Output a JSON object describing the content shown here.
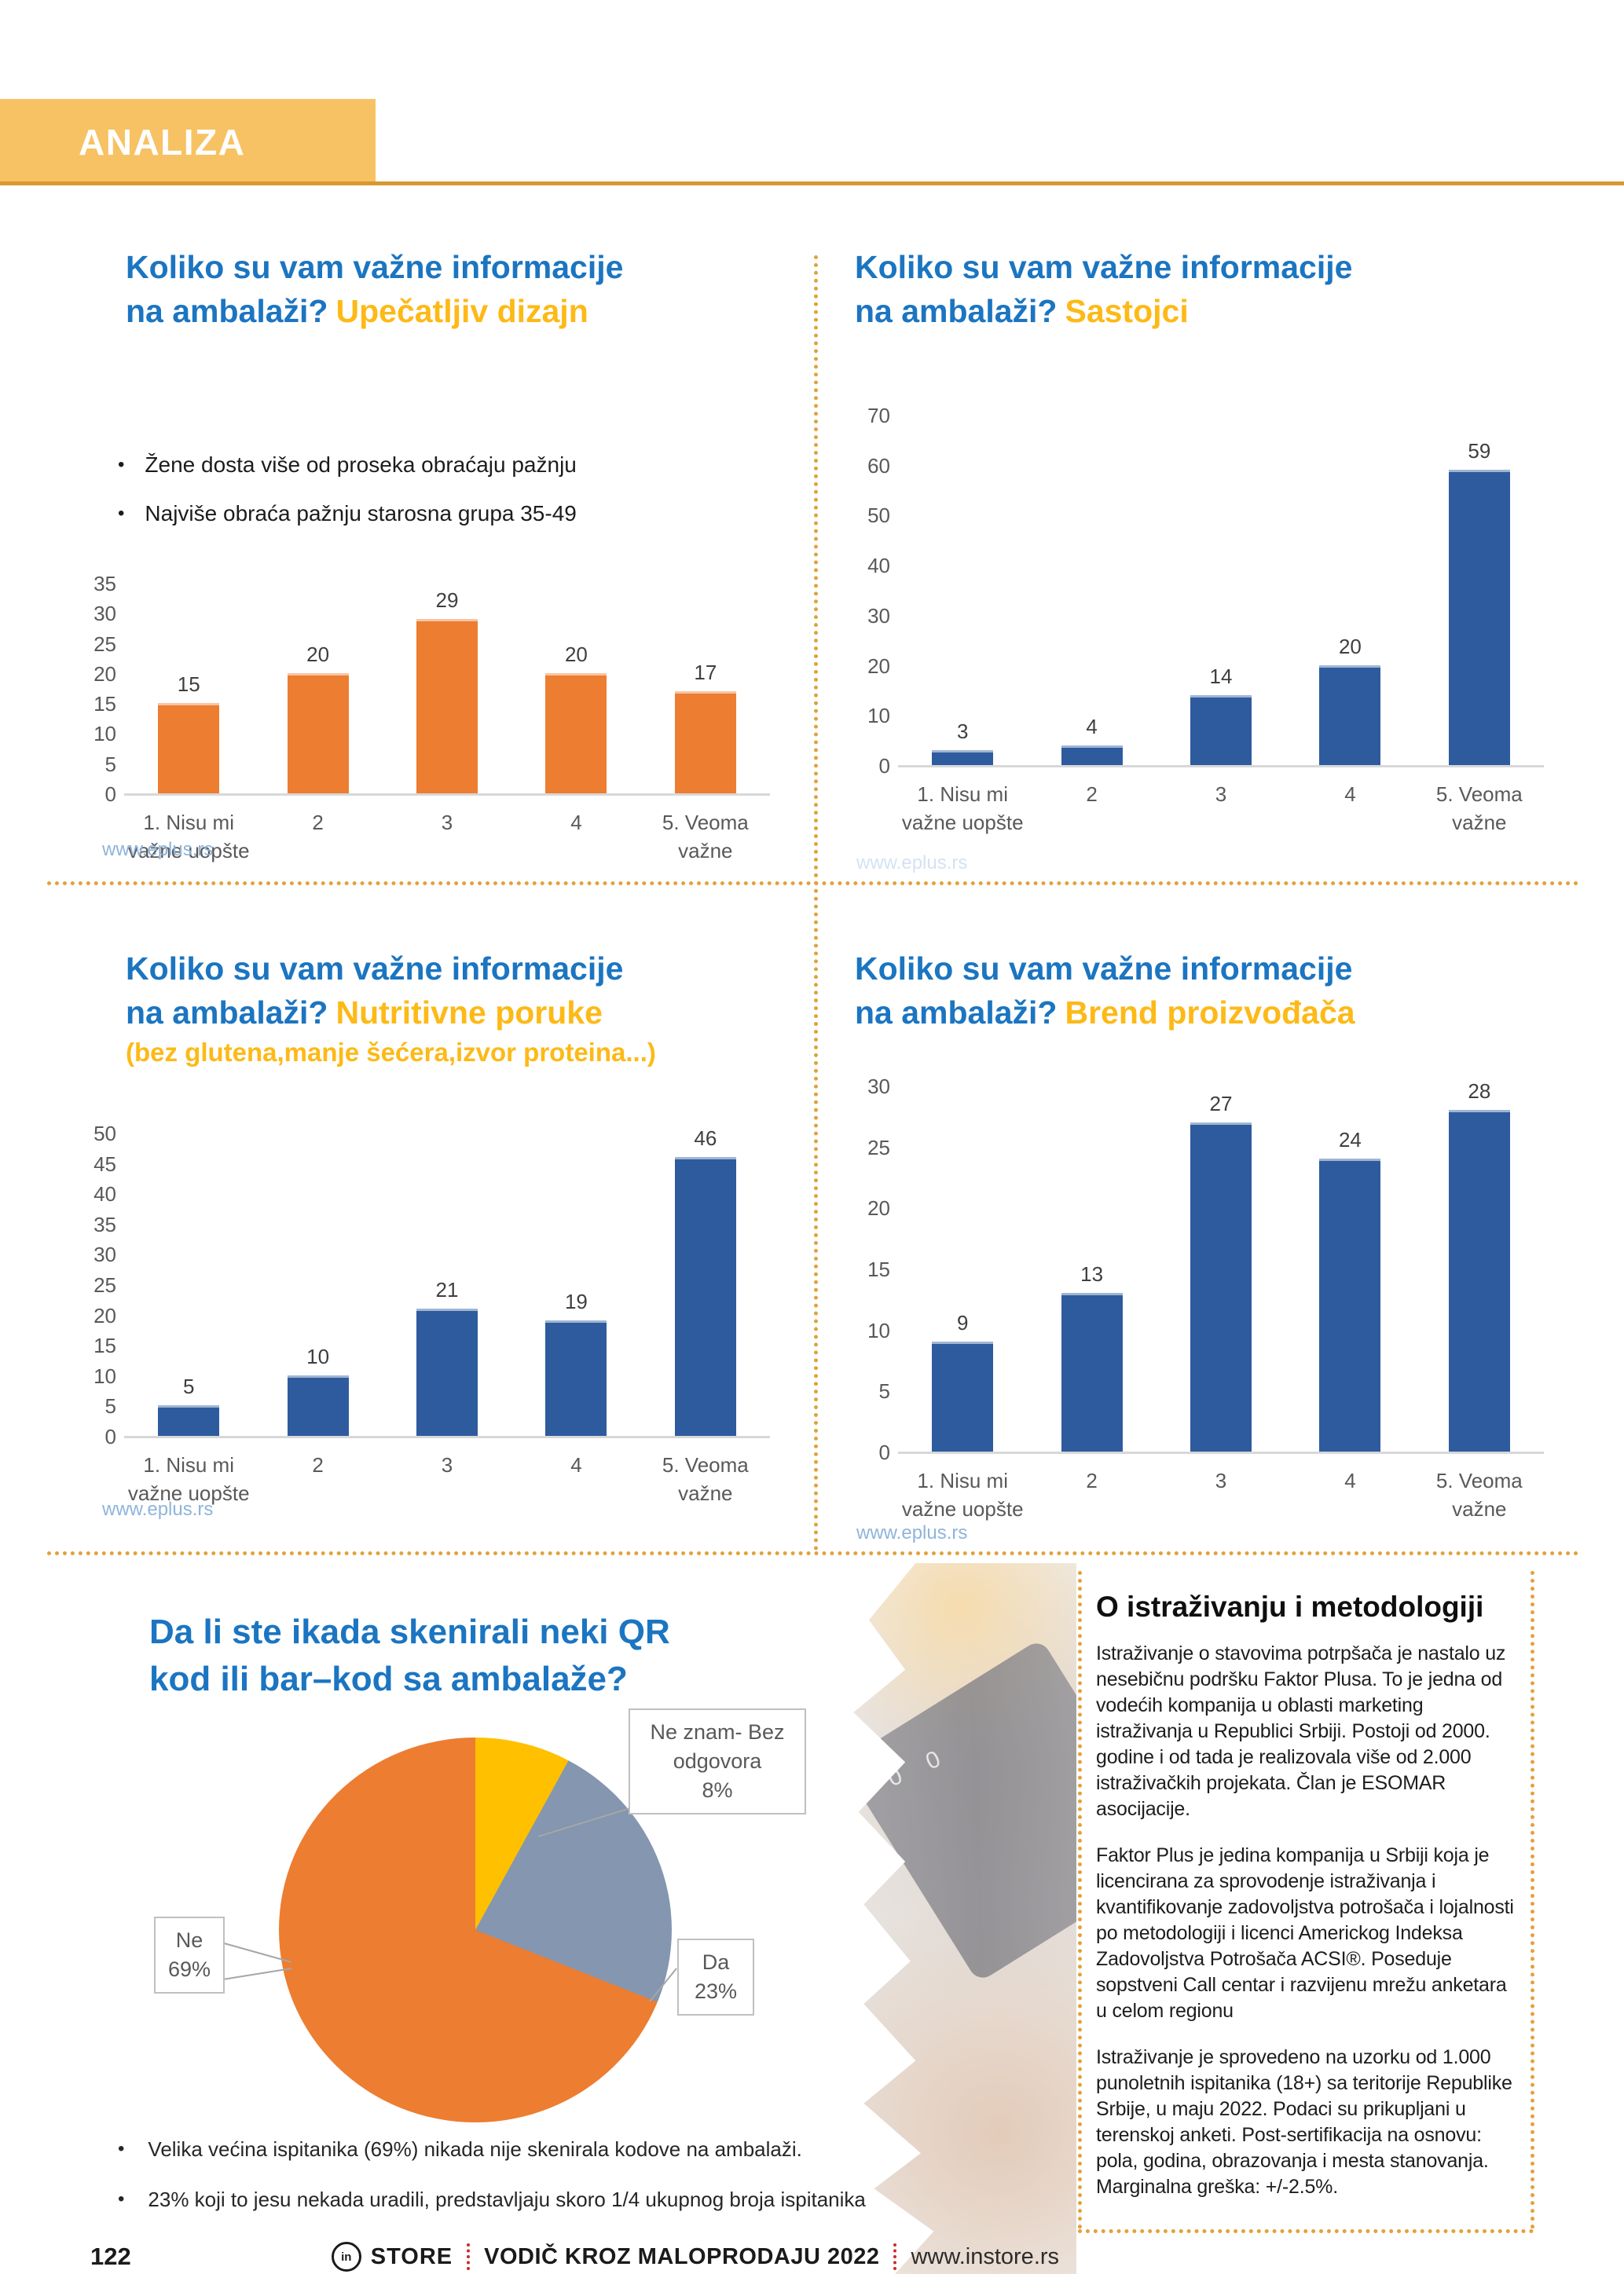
{
  "header": {
    "title": "ANALIZA"
  },
  "chart_data": [
    {
      "type": "bar",
      "title_line1": "Koliko su vam važne informacije",
      "title_line2": "na ambalaži?",
      "accent": "Upečatljiv dizajn",
      "notes": [
        "Žene dosta više od proseka obraćaju pažnju",
        "Najviše obraća pažnju starosna grupa 35-49"
      ],
      "categories": [
        "1. Nisu mi\nvažne uopšte",
        "2",
        "3",
        "4",
        "5. Veoma\nvažne"
      ],
      "values": [
        15,
        20,
        29,
        20,
        17
      ],
      "bar_color": "#ed7d31",
      "ylim": [
        0,
        35
      ],
      "ystep": 5,
      "grid": false,
      "legend": "none",
      "source": "www.eplus.rs"
    },
    {
      "type": "bar",
      "title_line1": "Koliko su vam važne informacije",
      "title_line2": "na ambalaži?",
      "accent": "Sastojci",
      "categories": [
        "1. Nisu mi\nvažne uopšte",
        "2",
        "3",
        "4",
        "5. Veoma\nvažne"
      ],
      "values": [
        3,
        4,
        14,
        20,
        59
      ],
      "bar_color": "#2e5b9e",
      "ylim": [
        0,
        70
      ],
      "ystep": 10,
      "grid": false,
      "legend": "none",
      "source": "www.eplus.rs"
    },
    {
      "type": "bar",
      "title_line1": "Koliko su vam važne informacije",
      "title_line2": "na ambalaži?",
      "accent": "Nutritivne poruke",
      "accent2": "(bez glutena,manje šećera,izvor proteina...)",
      "categories": [
        "1. Nisu mi\nvažne uopšte",
        "2",
        "3",
        "4",
        "5. Veoma\nvažne"
      ],
      "values": [
        5,
        10,
        21,
        19,
        46
      ],
      "bar_color": "#2e5b9e",
      "ylim": [
        0,
        50
      ],
      "ystep": 5,
      "grid": false,
      "legend": "none",
      "source": "www.eplus.rs"
    },
    {
      "type": "bar",
      "title_line1": "Koliko su vam važne informacije",
      "title_line2": "na ambalaži?",
      "accent": "Brend proizvođača",
      "categories": [
        "1. Nisu mi\nvažne uopšte",
        "2",
        "3",
        "4",
        "5. Veoma\nvažne"
      ],
      "values": [
        9,
        13,
        27,
        24,
        28
      ],
      "bar_color": "#2e5b9e",
      "ylim": [
        0,
        30
      ],
      "ystep": 5,
      "grid": false,
      "legend": "none",
      "source": "www.eplus.rs"
    },
    {
      "type": "pie",
      "title_line1": "Da li ste ikada skenirali neki QR",
      "title_line2": "kod ili bar–kod sa ambalaže?",
      "slices": [
        {
          "label": "Ne znam- Bez odgovora",
          "pct": 8,
          "color": "#ffc000"
        },
        {
          "label": "Da",
          "pct": 23,
          "color": "#8496b0"
        },
        {
          "label": "Ne",
          "pct": 69,
          "color": "#ed7d31"
        }
      ],
      "callout_neznam": "Ne znam- Bez\nodgovora\n8%",
      "callout_ne": "Ne\n69%",
      "callout_da": "Da\n23%",
      "notes": [
        "Velika većina ispitanika (69%) nikada nije skenirala kodove na ambalaži.",
        "23% koji to jesu nekada uradili, predstavljaju skoro 1/4 ukupnog broja ispitanika"
      ]
    }
  ],
  "methodology": {
    "heading": "O istraživanju i metodologiji",
    "paragraphs": [
      "Istraživanje o stavovima potrpšača je nastalo uz nesebičnu podršku Faktor Plusa. To je jedna od vodećih kompanija u oblasti marketing istraživanja u Republici Srbiji. Postoji od 2000. godine i od tada je realizovala više od 2.000 istraživačkih projekata. Član je ESOMAR asocijacije.",
      "Faktor Plus je jedina kompanija u Srbiji koja je licencirana za sprovodenje istraživanja i kvantifikovanje zadovoljstva potrošača i lojalnosti po metodologiji i licenci Americkog Indeksa Zadovoljstva Potrošača ACSI®. Poseduje sopstveni Call centar i razvijenu mrežu anketara u celom regionu",
      "Istraživanje je sprovedeno na uzorku od 1.000 punoletnih ispitanika (18+) sa teritorije Republike Srbije, u maju 2022. Podaci su prikupljani u terenskoj anketi. Post-sertifikacija na osnovu: pola, godina, obrazovanja i mesta stanovanja. Marginalna greška: +/-2.5%."
    ]
  },
  "footer": {
    "page_number": "122",
    "logo_text": "in",
    "brand": "STORE",
    "guide": "VODIČ KROZ MALOPRODAJU 2022",
    "website": "www.instore.rs"
  }
}
